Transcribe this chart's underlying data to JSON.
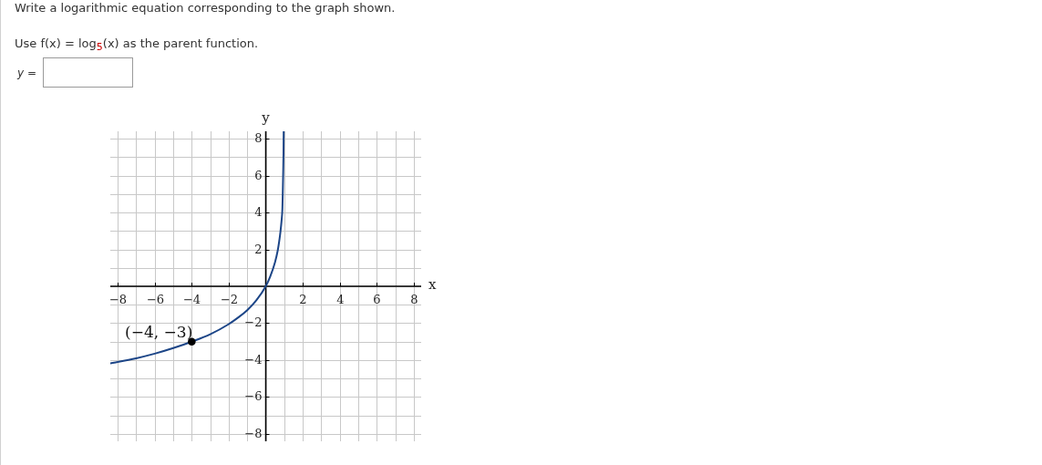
{
  "chart_data": {
    "type": "line",
    "title": "Write a logarithmic equation corresponding to the graph shown.",
    "subtitle": "Use f(x) = log$_{5}$(x) as the parent function.",
    "xlabel": "x",
    "ylabel": "y",
    "annotations": [
      "y =",
      {
        "text": "(−4, −3)",
        "x": -4,
        "y": -3
      }
    ],
    "series": [
      {
        "color": "#1c4587",
        "x": [
          -8.4,
          -8,
          -7,
          -6,
          -5,
          -4,
          -3,
          -2,
          -1.5,
          -1,
          -0.5,
          0,
          0.25,
          0.5,
          0.65,
          0.75,
          0.8,
          0.85,
          0.9,
          0.92,
          0.94,
          0.96,
          0.97
        ],
        "values": [
          -4.17,
          -4.1,
          -3.9,
          -3.65,
          -3.35,
          -3,
          -2.6,
          -2.05,
          -1.7,
          -1.3,
          -0.75,
          0,
          0.55,
          1.3,
          1.95,
          2.6,
          3.0,
          3.5,
          4.2,
          5.0,
          6.0,
          7.2,
          8.4
        ]
      },
      {
        "type": "scatter",
        "color": "#000000",
        "marker": "circle",
        "x": [
          -4
        ],
        "values": [
          -3
        ]
      }
    ],
    "xlim": [
      -8.4,
      8.4
    ],
    "ylim": [
      -8.4,
      8.4
    ],
    "xticks": [
      {
        "value": -8,
        "label": "−8"
      },
      {
        "value": -7,
        "label": null
      },
      {
        "value": -6,
        "label": "−6"
      },
      {
        "value": -5,
        "label": null
      },
      {
        "value": -4,
        "label": "−4"
      },
      {
        "value": -3,
        "label": null
      },
      {
        "value": -2,
        "label": "−2"
      },
      {
        "value": -1,
        "label": null
      },
      {
        "value": 0,
        "label": null
      },
      {
        "value": 1,
        "label": null
      },
      2,
      {
        "value": 3,
        "label": null
      },
      4,
      {
        "value": 5,
        "label": null
      },
      6,
      {
        "value": 7,
        "label": null
      },
      8
    ],
    "yticks": [
      {
        "value": -8,
        "label": "−8"
      },
      {
        "value": -7,
        "label": null
      },
      {
        "value": -6,
        "label": "−6"
      },
      {
        "value": -5,
        "label": null
      },
      {
        "value": -4,
        "label": "−4"
      },
      {
        "value": -3,
        "label": null
      },
      {
        "value": -2,
        "label": "−2"
      },
      {
        "value": -1,
        "label": null
      },
      {
        "value": 0,
        "label": null
      },
      {
        "value": 1,
        "label": null
      },
      2,
      {
        "value": 3,
        "label": null
      },
      4,
      {
        "value": 5,
        "label": null
      },
      6,
      {
        "value": 7,
        "label": null
      },
      8
    ],
    "grid": true
  }
}
